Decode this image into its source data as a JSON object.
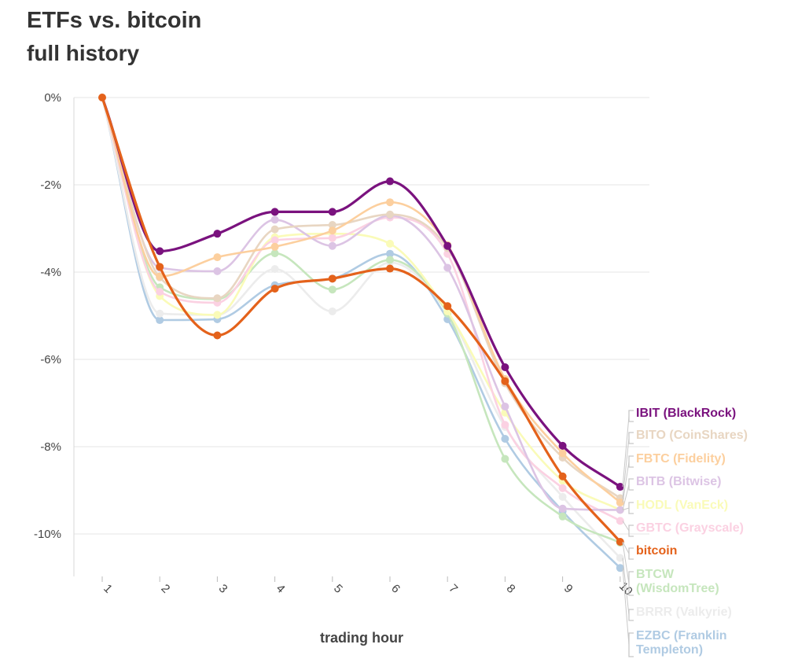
{
  "title": "ETFs vs. bitcoin",
  "subtitle": "full history",
  "chart_data": {
    "type": "line",
    "title": "ETFs vs. bitcoin",
    "subtitle": "full history",
    "xlabel": "trading hour",
    "ylabel": "",
    "x": [
      1,
      2,
      3,
      4,
      5,
      6,
      7,
      8,
      9,
      10
    ],
    "ylim": [
      -11,
      0
    ],
    "yticks": [
      0,
      -2,
      -4,
      -6,
      -8,
      -10
    ],
    "ytick_labels": [
      "0%",
      "-2%",
      "-4%",
      "-6%",
      "-8%",
      "-10%"
    ],
    "xtick_labels": [
      "1",
      "2",
      "3",
      "4",
      "5",
      "6",
      "7",
      "8",
      "9",
      "10"
    ],
    "grid": true,
    "legend": "direct labels at right end of lines",
    "series": [
      {
        "name": "EZBC",
        "label": [
          "EZBC (Franklin",
          "Templeton)"
        ],
        "color": "#b0cbe3",
        "values": [
          0,
          -5.1,
          -5.08,
          -4.3,
          -4.15,
          -3.58,
          -5.08,
          -7.82,
          -9.48,
          -10.78
        ]
      },
      {
        "name": "BRRR",
        "label": [
          "BRRR (Valkyrie)"
        ],
        "color": "#ececec",
        "values": [
          0,
          -4.95,
          -4.98,
          -3.93,
          -4.9,
          -3.78,
          -4.92,
          -7.55,
          -9.15,
          -10.55
        ]
      },
      {
        "name": "BTCW",
        "label": [
          "BTCW",
          "(WisdomTree)"
        ],
        "color": "#c6e6bd",
        "values": [
          0,
          -4.35,
          -4.62,
          -3.57,
          -4.4,
          -3.72,
          -4.95,
          -8.28,
          -9.6,
          -10.2
        ]
      },
      {
        "name": "HODL",
        "label": [
          "HODL (VanEck)"
        ],
        "color": "#fafbb8",
        "values": [
          0,
          -4.55,
          -4.98,
          -3.2,
          -3.12,
          -3.35,
          -4.9,
          -7.22,
          -8.78,
          -9.45
        ]
      },
      {
        "name": "GBTC",
        "label": [
          "GBTC (Grayscale)"
        ],
        "color": "#fbd1e2",
        "values": [
          0,
          -4.45,
          -4.7,
          -3.27,
          -3.22,
          -2.75,
          -3.58,
          -7.5,
          -8.95,
          -9.7
        ]
      },
      {
        "name": "BITB",
        "label": [
          "BITB (Bitwise)"
        ],
        "color": "#dcc4e4",
        "values": [
          0,
          -3.9,
          -3.98,
          -2.8,
          -3.4,
          -2.7,
          -3.9,
          -7.08,
          -9.42,
          -9.45
        ]
      },
      {
        "name": "BITO",
        "label": [
          "BITO (CoinShares)"
        ],
        "color": "#e8d6c2",
        "values": [
          0,
          -4.12,
          -4.6,
          -3.02,
          -2.92,
          -2.68,
          -3.45,
          -6.55,
          -8.25,
          -9.18
        ]
      },
      {
        "name": "FBTC",
        "label": [
          "FBTC (Fidelity)"
        ],
        "color": "#fccf9e",
        "values": [
          0,
          -4.1,
          -3.66,
          -3.42,
          -3.05,
          -2.4,
          -3.38,
          -6.45,
          -8.15,
          -9.28
        ]
      },
      {
        "name": "IBIT",
        "label": [
          "IBIT (BlackRock)"
        ],
        "color": "#7a127e",
        "values": [
          0,
          -3.52,
          -3.12,
          -2.62,
          -2.62,
          -1.92,
          -3.4,
          -6.18,
          -7.98,
          -8.92
        ]
      },
      {
        "name": "bitcoin",
        "label": [
          "bitcoin"
        ],
        "color": "#e4621b",
        "values": [
          0,
          -3.88,
          -5.45,
          -4.38,
          -4.15,
          -3.92,
          -4.78,
          -6.5,
          -8.68,
          -10.18
        ]
      }
    ],
    "label_order": [
      "IBIT",
      "BITO",
      "FBTC",
      "BITB",
      "HODL",
      "GBTC",
      "bitcoin",
      "BTCW",
      "BRRR",
      "EZBC"
    ]
  }
}
